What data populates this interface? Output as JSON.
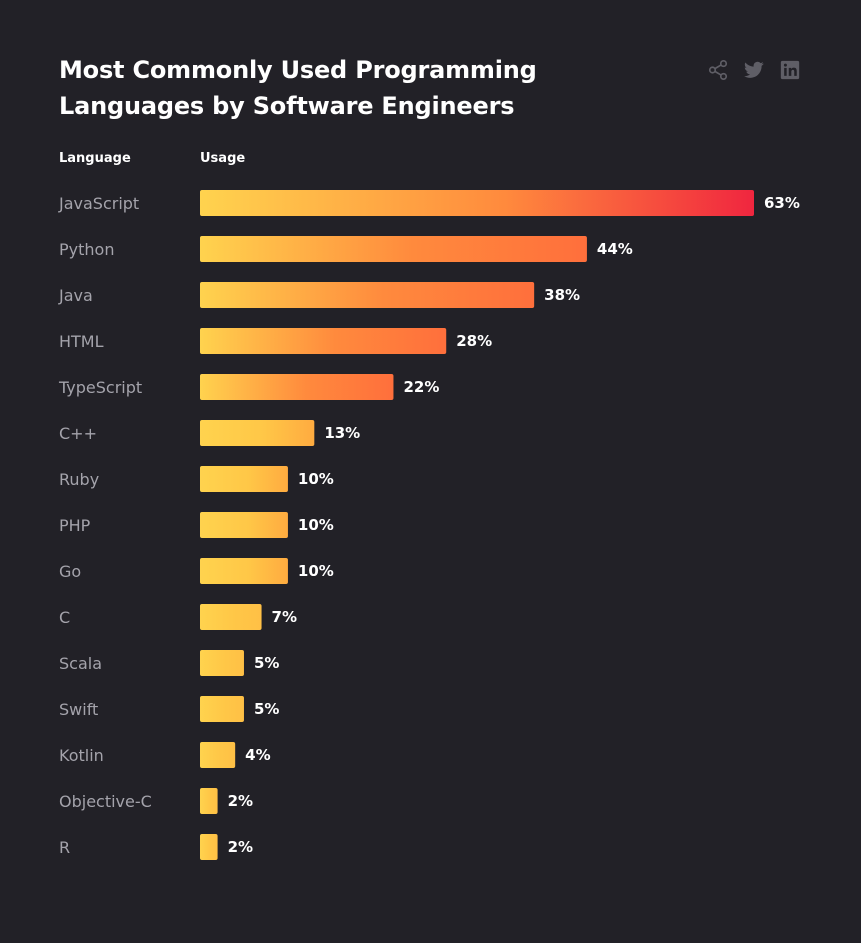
{
  "title": "Most Commonly Used Programming Languages by Software Engineers",
  "columns": {
    "category": "Language",
    "value": "Usage"
  },
  "share": {
    "icons": [
      "share-icon",
      "twitter-icon",
      "linkedin-icon"
    ],
    "icon_color": "#5f5e66"
  },
  "colors": {
    "background": "#222127",
    "gradient_start": "#ffd34e",
    "gradient_mid": "#ff8a3d",
    "gradient_end": "#f0263f"
  },
  "chart_data": {
    "type": "bar",
    "orientation": "horizontal",
    "title": "Most Commonly Used Programming Languages by Software Engineers",
    "xlabel": "Usage",
    "ylabel": "Language",
    "unit": "%",
    "xlim": [
      0,
      63
    ],
    "grid": false,
    "categories": [
      "JavaScript",
      "Python",
      "Java",
      "HTML",
      "TypeScript",
      "C++",
      "Ruby",
      "PHP",
      "Go",
      "C",
      "Scala",
      "Swift",
      "Kotlin",
      "Objective-C",
      "R"
    ],
    "values": [
      63,
      44,
      38,
      28,
      22,
      13,
      10,
      10,
      10,
      7,
      5,
      5,
      4,
      2,
      2
    ],
    "value_labels": [
      "63%",
      "44%",
      "38%",
      "28%",
      "22%",
      "13%",
      "10%",
      "10%",
      "10%",
      "7%",
      "5%",
      "5%",
      "4%",
      "2%",
      "2%"
    ]
  }
}
